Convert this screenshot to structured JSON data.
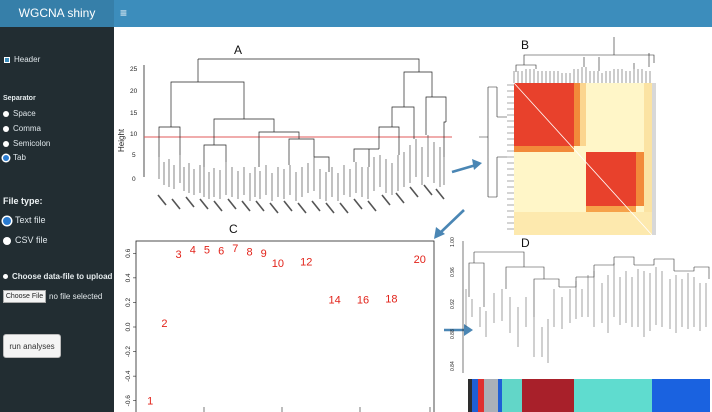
{
  "app": {
    "title": "WGCNA shiny",
    "menu_icon": "hamburger-icon"
  },
  "sidebar": {
    "header_checkbox": {
      "label": "Header",
      "checked": true
    },
    "separator": {
      "title": "Separator",
      "options": [
        "Space",
        "Comma",
        "Semicolon",
        "Tab"
      ],
      "selected": "Tab"
    },
    "file_type": {
      "title": "File type:",
      "options": [
        "Text file",
        "CSV file"
      ],
      "selected": "Text file"
    },
    "upload": {
      "title": "Choose data-file to upload",
      "button_label": "Choose File",
      "status": "no file selected"
    },
    "run_button": "run analyses"
  },
  "figure": {
    "panels": [
      "A",
      "B",
      "C",
      "D"
    ],
    "panel_a": {
      "ylabel": "Height",
      "yticks": [
        "0",
        "5",
        "10",
        "15",
        "20",
        "25"
      ],
      "cut_height": 10
    },
    "panel_c": {
      "yticks": [
        "0.6",
        "0.4",
        "0.2",
        "0.0",
        "-0.2",
        "-0.4",
        "-0.6"
      ],
      "points": [
        {
          "label": "1",
          "x": 1,
          "y": -0.63
        },
        {
          "label": "2",
          "x": 2,
          "y": 0.0
        },
        {
          "label": "3",
          "x": 3,
          "y": 0.56
        },
        {
          "label": "4",
          "x": 4,
          "y": 0.6
        },
        {
          "label": "5",
          "x": 5,
          "y": 0.6
        },
        {
          "label": "6",
          "x": 6,
          "y": 0.59
        },
        {
          "label": "7",
          "x": 7,
          "y": 0.61
        },
        {
          "label": "8",
          "x": 8,
          "y": 0.58
        },
        {
          "label": "9",
          "x": 9,
          "y": 0.57
        },
        {
          "label": "10",
          "x": 10,
          "y": 0.49
        },
        {
          "label": "12",
          "x": 12,
          "y": 0.5
        },
        {
          "label": "14",
          "x": 14,
          "y": 0.19
        },
        {
          "label": "16",
          "x": 16,
          "y": 0.19
        },
        {
          "label": "18",
          "x": 18,
          "y": 0.2
        },
        {
          "label": "20",
          "x": 20,
          "y": 0.52
        }
      ]
    },
    "panel_d": {
      "module_colors": [
        "#2d2d2d",
        "#1f5fd6",
        "#e03030",
        "#aab0b8",
        "#62d6c8",
        "#a8202a",
        "#5fdccf",
        "#1a62e0"
      ]
    }
  }
}
